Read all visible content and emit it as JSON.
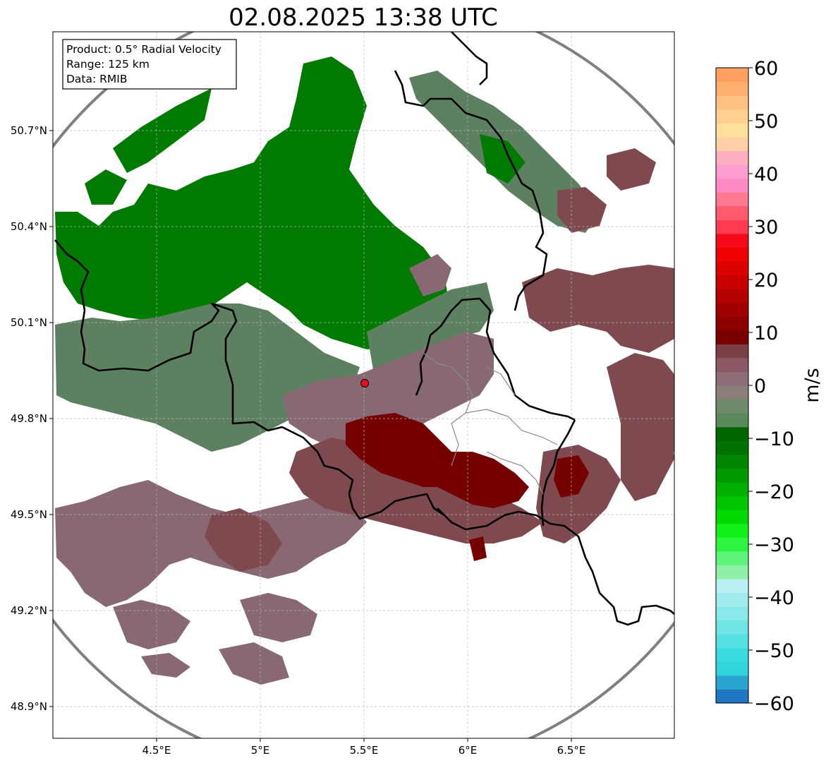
{
  "title": "02.08.2025 13:38 UTC",
  "info_box": {
    "product": "Product: 0.5° Radial Velocity",
    "range": "Range: 125 km",
    "data": "Data: RMIB"
  },
  "axes": {
    "lon_ticks": [
      "4.5°E",
      "5°E",
      "5.5°E",
      "6°E",
      "6.5°E"
    ],
    "lat_ticks": [
      "50.7°N",
      "50.4°N",
      "50.1°N",
      "49.8°N",
      "49.5°N",
      "49.2°N",
      "48.9°N"
    ],
    "lon_values": [
      4.5,
      5.0,
      5.5,
      6.0,
      6.5
    ],
    "lat_values": [
      50.7,
      50.4,
      50.1,
      49.8,
      49.5,
      49.2,
      48.9
    ],
    "lon_range": [
      4.0,
      7.0
    ],
    "lat_range": [
      48.8,
      51.0
    ],
    "grid": true
  },
  "radar": {
    "lon": 5.5,
    "lat": 49.91,
    "range_km": 125,
    "marker_color": "#e8101a"
  },
  "colorbar": {
    "label": "m/s",
    "ticks": [
      "60",
      "50",
      "40",
      "30",
      "20",
      "10",
      "0",
      "−10",
      "−20",
      "−30",
      "−40",
      "−50",
      "−60"
    ],
    "min": -60,
    "max": 60,
    "colors": [
      "#1f77c4",
      "#2ba4d2",
      "#2fd4dc",
      "#3adbde",
      "#55e0e2",
      "#6fe4e6",
      "#88e8ea",
      "#a0ecee",
      "#b8f0f2",
      "#8ff0a8",
      "#5cf57a",
      "#2ef542",
      "#12f01a",
      "#00d800",
      "#00c400",
      "#00ae00",
      "#009a00",
      "#008600",
      "#007200",
      "#006400",
      "#5a8a5c",
      "#6f8a6a",
      "#8a7f79",
      "#8f6c7a",
      "#8b5864",
      "#7d3f47",
      "#780000",
      "#8c0000",
      "#a00000",
      "#b40000",
      "#c80000",
      "#dc0000",
      "#f00000",
      "#f50a1a",
      "#ff3a50",
      "#ff5a6e",
      "#ff7a90",
      "#ff8ac6",
      "#ff9cd0",
      "#ffb0c0",
      "#ffd0a8",
      "#ffe09a",
      "#ffd090",
      "#ffc080",
      "#ffb070",
      "#ffa060"
    ]
  },
  "echo_colors": {
    "approaching_strong": "#007a00",
    "approaching_weak": "#5c8060",
    "neutral": "#876873",
    "receding_weak": "#7e4a50",
    "receding_strong": "#750000"
  }
}
